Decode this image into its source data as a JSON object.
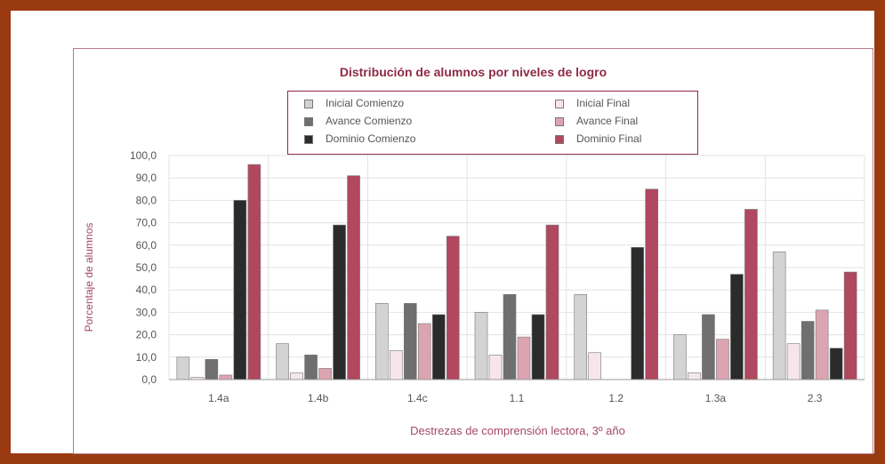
{
  "chart_data": {
    "type": "bar",
    "title": "Distribución de alumnos por niveles de logro",
    "xlabel": "Destrezas de comprensión lectora, 3º año",
    "ylabel": "Porcentaje de alumnos",
    "ylim": [
      0,
      100
    ],
    "yticks": [
      "0,0",
      "10,0",
      "20,0",
      "30,0",
      "40,0",
      "50,0",
      "60,0",
      "70,0",
      "80,0",
      "90,0",
      "100,0"
    ],
    "categories": [
      "1.4a",
      "1.4b",
      "1.4c",
      "1.1",
      "1.2",
      "1.3a",
      "2.3"
    ],
    "grid": true,
    "series": [
      {
        "name": "Inicial Comienzo",
        "color": "#d3d3d3",
        "values": [
          10,
          16,
          34,
          30,
          38,
          20,
          57
        ]
      },
      {
        "name": "Inicial Final",
        "color": "#f6e6ea",
        "values": [
          1,
          3,
          13,
          11,
          12,
          3,
          16
        ]
      },
      {
        "name": "Avance Comienzo",
        "color": "#6f6f6f",
        "values": [
          9,
          11,
          34,
          38,
          0,
          29,
          26
        ]
      },
      {
        "name": "Avance Final",
        "color": "#dca4b1",
        "values": [
          2,
          5,
          25,
          19,
          0,
          18,
          31
        ]
      },
      {
        "name": "Dominio Comienzo",
        "color": "#2b2b2b",
        "values": [
          80,
          69,
          29,
          29,
          59,
          47,
          14
        ]
      },
      {
        "name": "Dominio Final",
        "color": "#b0485f",
        "values": [
          96,
          91,
          64,
          69,
          85,
          76,
          48
        ]
      }
    ]
  },
  "legend": {
    "col1": [
      "Inicial Comienzo",
      "Avance Comienzo",
      "Dominio Comienzo"
    ],
    "col2": [
      "Inicial Final",
      "Avance Final",
      "Dominio Final"
    ]
  }
}
